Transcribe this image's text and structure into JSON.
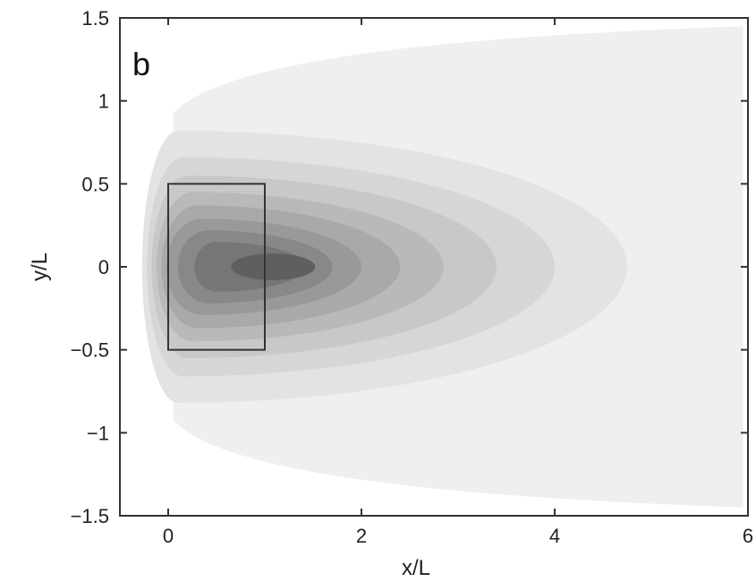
{
  "chart_data": {
    "type": "contour",
    "panel_label": "b",
    "xlabel": "x/L",
    "ylabel": "y/L",
    "xlim": [
      -0.5,
      6
    ],
    "ylim": [
      -1.5,
      1.5
    ],
    "xticks": [
      0,
      2,
      4,
      6
    ],
    "xtick_labels": [
      "0",
      "2",
      "4",
      "6"
    ],
    "yticks": [
      1.5,
      1,
      0.5,
      0,
      -0.5,
      -1,
      -1.5
    ],
    "ytick_labels": [
      "1.5",
      "1",
      "0.5",
      "0",
      "−0.5",
      "−1",
      "−1.5"
    ],
    "grid": false,
    "colormap": "grayscale",
    "contour_levels": [
      {
        "level": 1,
        "color": "#efefef",
        "x_min": 0.05,
        "x_max": 5.95,
        "y_half_at_max": 1.45
      },
      {
        "level": 2,
        "color": "#e3e3e3",
        "x_min": 0.1,
        "x_max": 4.75,
        "y_half": 0.82
      },
      {
        "level": 3,
        "color": "#d6d6d6",
        "x_min": 0.15,
        "x_max": 4.0,
        "y_half": 0.66
      },
      {
        "level": 4,
        "color": "#c8c8c8",
        "x_min": 0.2,
        "x_max": 3.4,
        "y_half": 0.55
      },
      {
        "level": 5,
        "color": "#b9b9b9",
        "x_min": 0.25,
        "x_max": 2.85,
        "y_half": 0.45
      },
      {
        "level": 6,
        "color": "#a9a9a9",
        "x_min": 0.3,
        "x_max": 2.4,
        "y_half": 0.37
      },
      {
        "level": 7,
        "color": "#999999",
        "x_min": 0.35,
        "x_max": 2.0,
        "y_half": 0.29
      },
      {
        "level": 8,
        "color": "#888888",
        "x_min": 0.42,
        "x_max": 1.7,
        "y_half": 0.22
      },
      {
        "level": 9,
        "color": "#767676",
        "x_min": 0.5,
        "x_max": 1.42,
        "y_half": 0.15
      },
      {
        "level": 10,
        "color": "#5f5f5f",
        "x_min": 0.65,
        "x_max": 1.52,
        "y_half": 0.08
      }
    ],
    "source_box": {
      "x0": 0,
      "x1": 1,
      "y0": -0.5,
      "y1": 0.5
    }
  }
}
